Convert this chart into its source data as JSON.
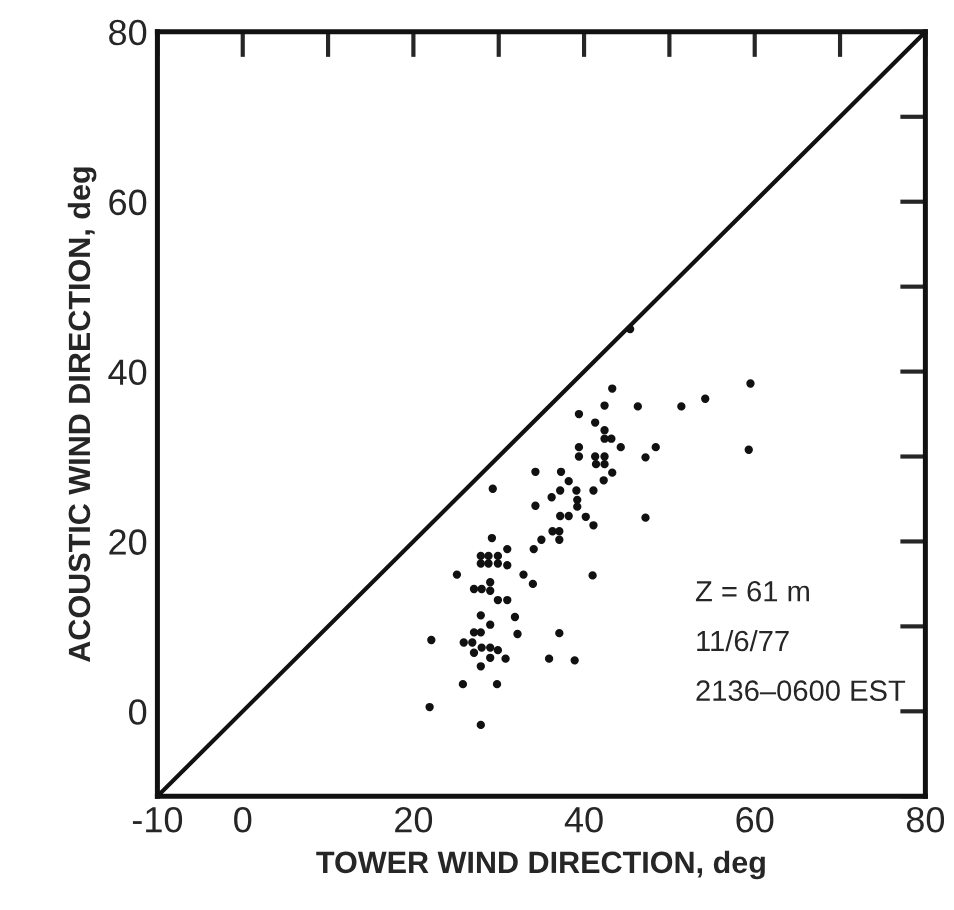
{
  "chart_data": {
    "type": "scatter",
    "xlabel": "TOWER WIND DIRECTION, deg",
    "ylabel": "ACOUSTIC WIND DIRECTION, deg",
    "xlim": [
      -10,
      80
    ],
    "ylim": [
      -10,
      80
    ],
    "xticks": [
      -10,
      0,
      {
        "value": 10,
        "label": null
      },
      20,
      {
        "value": 30,
        "label": null
      },
      40,
      {
        "value": 50,
        "label": null
      },
      60,
      {
        "value": 70,
        "label": null
      },
      80
    ],
    "yticks": [
      {
        "value": -10,
        "label": null
      },
      0,
      {
        "value": 10,
        "label": null
      },
      20,
      {
        "value": 30,
        "label": null
      },
      40,
      {
        "value": 50,
        "label": null
      },
      60,
      {
        "value": 70,
        "label": null
      },
      80
    ],
    "grid": false,
    "legend": false,
    "series": [
      {
        "color": "#111111",
        "marker": "circle",
        "x": [
          45.4,
          43.3,
          59.5,
          46.3,
          42.4,
          51.4,
          54.2,
          39.4,
          41.3,
          42.4,
          42.4,
          43.2,
          44.3,
          48.4,
          59.3,
          39.4,
          39.4,
          41.3,
          42.4,
          41.4,
          42.4,
          47.2,
          43.3,
          42.3,
          34.3,
          37.3,
          29.3,
          38.2,
          37.2,
          39.1,
          36.2,
          41.1,
          39.2,
          39.2,
          34.3,
          37.2,
          38.2,
          40.2,
          41.1,
          47.2,
          36.3,
          37.1,
          37.1,
          35.0,
          34.1,
          29.2,
          27.9,
          28.8,
          29.9,
          27.9,
          28.8,
          29.9,
          31.0,
          31.0,
          25.1,
          32.9,
          34.0,
          41.0,
          29.0,
          27.1,
          28.0,
          29.0,
          29.9,
          31.0,
          27.9,
          31.9,
          29.0,
          27.1,
          27.9,
          25.9,
          26.9,
          32.2,
          37.1,
          22.1,
          28.0,
          29.0,
          29.9,
          27.1,
          30.8,
          29.0,
          27.9,
          35.9,
          38.9,
          25.8,
          29.8,
          21.9,
          27.9
        ],
        "values": [
          45.0,
          38.0,
          38.6,
          35.9,
          36.0,
          35.9,
          36.8,
          35.0,
          34.0,
          33.1,
          32.1,
          32.1,
          31.1,
          31.1,
          30.8,
          31.1,
          30.0,
          30.0,
          30.0,
          29.1,
          29.1,
          29.9,
          28.1,
          27.2,
          28.2,
          28.2,
          26.2,
          27.1,
          26.0,
          26.0,
          25.2,
          26.0,
          24.9,
          24.1,
          24.2,
          23.0,
          23.0,
          22.9,
          21.9,
          22.8,
          21.2,
          21.2,
          20.2,
          20.2,
          19.1,
          20.4,
          18.3,
          18.3,
          18.3,
          17.4,
          17.4,
          17.4,
          17.2,
          19.1,
          16.1,
          16.1,
          15.0,
          16.0,
          15.2,
          14.4,
          14.4,
          14.2,
          13.1,
          13.1,
          11.3,
          11.1,
          10.2,
          9.3,
          9.3,
          8.1,
          8.1,
          9.1,
          9.2,
          8.4,
          7.5,
          7.5,
          7.2,
          6.9,
          6.2,
          6.3,
          5.3,
          6.2,
          6.0,
          3.2,
          3.2,
          0.5,
          -1.6
        ]
      },
      {
        "type": "line",
        "color": "#111111",
        "marker": "none",
        "line_style": "solid",
        "x": [
          -10,
          80
        ],
        "values": [
          -10,
          80
        ]
      }
    ],
    "annotations": [
      "Z = 61 m",
      "11/6/77",
      "2136–0600 EST"
    ]
  }
}
